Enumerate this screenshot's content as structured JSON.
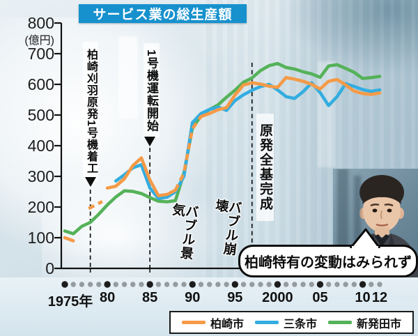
{
  "title": "サービス業の総生産額",
  "y_axis": {
    "unit": "(億円)",
    "ticks": [
      0,
      100,
      200,
      300,
      400,
      500,
      600,
      700,
      800
    ]
  },
  "x_axis": {
    "dot_years": {
      "start": 1975,
      "end": 2012,
      "major_every": 5
    },
    "labels": [
      {
        "text": "1975年",
        "year": 1975,
        "dx": 8
      },
      {
        "text": "80",
        "year": 1980
      },
      {
        "text": "85",
        "year": 1985
      },
      {
        "text": "90",
        "year": 1990
      },
      {
        "text": "95",
        "year": 1995
      },
      {
        "text": "2000",
        "year": 2000
      },
      {
        "text": "05",
        "year": 2005
      },
      {
        "text": "10",
        "year": 2010
      },
      {
        "text": "12",
        "year": 2012
      }
    ]
  },
  "annotations": {
    "construction": {
      "label": "柏崎刈羽原発1号機着工",
      "year": 1978,
      "marker": "▼"
    },
    "operation_start": {
      "label": "1号機運転開始",
      "year": 1985,
      "marker": "▼"
    },
    "all_units_complete": {
      "label": "原発全基完成",
      "year": 1997
    },
    "bubble_boom": "バブル景気",
    "bubble_burst": "バブル崩壊"
  },
  "callout": {
    "text": "柏崎特有の変動はみられず"
  },
  "legend": {
    "items": [
      {
        "label": "柏崎市",
        "color": "#f59a47"
      },
      {
        "label": "三条市",
        "color": "#33ade0"
      },
      {
        "label": "新発田市",
        "color": "#55b259"
      }
    ]
  },
  "colors": {
    "title_bg": "#1791cd",
    "axis": "#111111",
    "dot_minor": "#959ca0",
    "dot_major": "#1c1c1c"
  },
  "chart_data": {
    "type": "line",
    "title": "サービス業の総生産額",
    "ylabel": "億円",
    "ylim": [
      0,
      800
    ],
    "x_range": [
      1975,
      2012
    ],
    "grid": false,
    "legend_position": "bottom",
    "event_lines": [
      {
        "label": "柏崎刈羽原発1号機着工",
        "year": 1978
      },
      {
        "label": "1号機運転開始",
        "year": 1985
      },
      {
        "label": "原発全基完成",
        "year": 1997
      }
    ],
    "series": [
      {
        "name": "新発田市",
        "color": "#55b259",
        "segments": [
          {
            "dash": false,
            "points": [
              [
                1975,
                122
              ],
              [
                1976,
                113
              ],
              [
                1977,
                137
              ],
              [
                1978,
                150
              ],
              [
                1979,
                177
              ],
              [
                1980,
                207
              ],
              [
                1981,
                233
              ],
              [
                1982,
                253
              ],
              [
                1983,
                251
              ],
              [
                1984,
                244
              ],
              [
                1985,
                231
              ],
              [
                1986,
                219
              ],
              [
                1987,
                217
              ],
              [
                1988,
                221
              ],
              [
                1989,
                310
              ],
              [
                1990,
                458
              ],
              [
                1991,
                497
              ],
              [
                1992,
                518
              ],
              [
                1993,
                533
              ],
              [
                1994,
                558
              ],
              [
                1995,
                581
              ],
              [
                1996,
                607
              ],
              [
                1997,
                621
              ],
              [
                1998,
                645
              ],
              [
                1999,
                661
              ],
              [
                2000,
                668
              ],
              [
                2001,
                655
              ],
              [
                2002,
                650
              ],
              [
                2003,
                641
              ],
              [
                2004,
                634
              ],
              [
                2005,
                623
              ],
              [
                2006,
                660
              ],
              [
                2007,
                664
              ],
              [
                2008,
                652
              ],
              [
                2009,
                639
              ],
              [
                2010,
                619
              ],
              [
                2011,
                622
              ],
              [
                2012,
                626
              ]
            ]
          }
        ]
      },
      {
        "name": "三条市",
        "color": "#33ade0",
        "segments": [
          {
            "dash": false,
            "points": [
              [
                1981,
                285
              ],
              [
                1982,
                305
              ],
              [
                1983,
                328
              ],
              [
                1984,
                338
              ],
              [
                1985,
                262
              ],
              [
                1986,
                228
              ],
              [
                1987,
                232
              ],
              [
                1988,
                250
              ],
              [
                1989,
                300
              ],
              [
                1990,
                475
              ],
              [
                1991,
                505
              ],
              [
                1992,
                518
              ],
              [
                1993,
                526
              ],
              [
                1994,
                515
              ],
              [
                1995,
                547
              ],
              [
                1996,
                566
              ],
              [
                1997,
                581
              ],
              [
                1998,
                593
              ],
              [
                1999,
                600
              ],
              [
                2000,
                582
              ],
              [
                2001,
                560
              ],
              [
                2002,
                554
              ],
              [
                2003,
                576
              ],
              [
                2004,
                605
              ],
              [
                2005,
                573
              ],
              [
                2006,
                531
              ],
              [
                2007,
                560
              ],
              [
                2008,
                602
              ],
              [
                2009,
                593
              ],
              [
                2010,
                583
              ],
              [
                2011,
                577
              ],
              [
                2012,
                582
              ]
            ]
          }
        ]
      },
      {
        "name": "柏崎市",
        "color": "#f59a47",
        "segments": [
          {
            "dash": false,
            "points": [
              [
                1975,
                100
              ],
              [
                1976,
                90
              ]
            ]
          },
          {
            "dash": true,
            "points": [
              [
                1977.8,
                195
              ],
              [
                1979.4,
                218
              ]
            ]
          },
          {
            "dash": false,
            "points": [
              [
                1980,
                262
              ],
              [
                1981,
                268
              ],
              [
                1982,
                292
              ],
              [
                1983,
                335
              ],
              [
                1984,
                360
              ],
              [
                1985,
                288
              ],
              [
                1986,
                237
              ],
              [
                1987,
                241
              ],
              [
                1988,
                255
              ]
            ]
          },
          {
            "dash": true,
            "points": [
              [
                1988,
                255
              ],
              [
                1989,
                310
              ],
              [
                1990,
                455
              ],
              [
                1991,
                495
              ]
            ]
          },
          {
            "dash": false,
            "points": [
              [
                1991,
                495
              ],
              [
                1992,
                505
              ],
              [
                1993,
                517
              ],
              [
                1994,
                524
              ],
              [
                1995,
                565
              ],
              [
                1996,
                598
              ],
              [
                1997,
                605
              ],
              [
                1998,
                601
              ],
              [
                1999,
                594
              ],
              [
                2000,
                590
              ],
              [
                2001,
                622
              ],
              [
                2002,
                617
              ],
              [
                2003,
                610
              ],
              [
                2004,
                600
              ],
              [
                2005,
                585
              ],
              [
                2006,
                610
              ],
              [
                2007,
                616
              ],
              [
                2008,
                598
              ],
              [
                2009,
                578
              ],
              [
                2010,
                570
              ],
              [
                2011,
                567
              ],
              [
                2012,
                572
              ]
            ]
          }
        ]
      }
    ]
  }
}
